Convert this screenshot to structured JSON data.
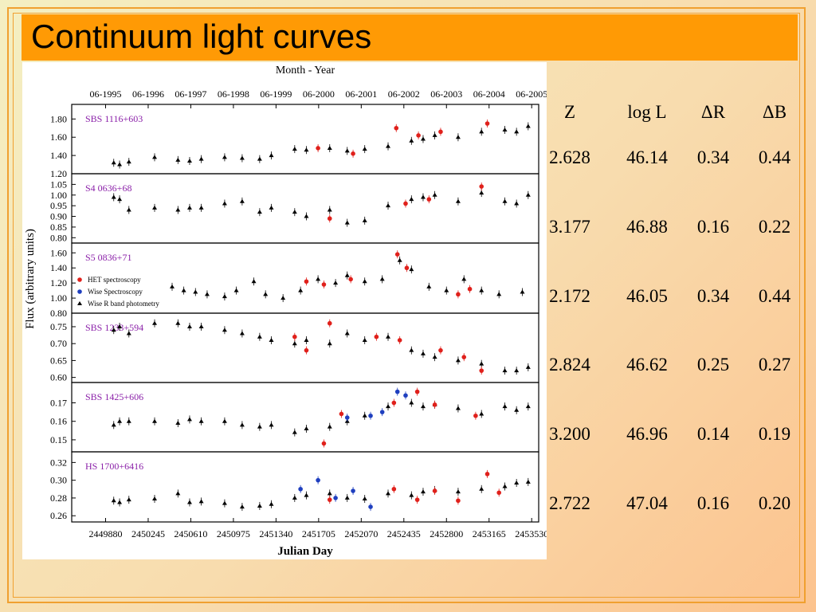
{
  "title": "Continuum light curves",
  "chart_data": {
    "type": "scatter",
    "top_label": "Month - Year",
    "x_label": "Julian Day",
    "y_label": "Flux (arbitrary units)",
    "xlim": [
      2449590,
      2453590
    ],
    "xticks": [
      2449880,
      2450245,
      2450610,
      2450975,
      2451340,
      2451705,
      2452070,
      2452435,
      2452800,
      2453165,
      2453530
    ],
    "top_ticks": [
      {
        "value": 2449880,
        "label": "06-1995"
      },
      {
        "value": 2450245,
        "label": "06-1996"
      },
      {
        "value": 2450610,
        "label": "06-1997"
      },
      {
        "value": 2450975,
        "label": "06-1998"
      },
      {
        "value": 2451340,
        "label": "06-1999"
      },
      {
        "value": 2451705,
        "label": "06-2000"
      },
      {
        "value": 2452070,
        "label": "06-2001"
      },
      {
        "value": 2452435,
        "label": "06-2002"
      },
      {
        "value": 2452800,
        "label": "06-2003"
      },
      {
        "value": 2453165,
        "label": "06-2004"
      },
      {
        "value": 2453530,
        "label": "06-2005"
      }
    ],
    "panels": [
      {
        "name": "SBS 1116+603",
        "ylim": [
          1.2,
          1.96
        ],
        "yticks": [
          {
            "value": 1.2,
            "label": "1.20"
          },
          {
            "value": 1.4,
            "label": "1.40"
          },
          {
            "value": 1.6,
            "label": "1.60"
          },
          {
            "value": 1.8,
            "label": "1.80"
          }
        ],
        "series": [
          {
            "name": "Wise R band photometry",
            "color": "#000000",
            "marker": "triangle",
            "x": [
              2449950,
              2450000,
              2450080,
              2450300,
              2450500,
              2450600,
              2450700,
              2450900,
              2451050,
              2451200,
              2451300,
              2451500,
              2451600,
              2451800,
              2451950,
              2452100,
              2452300,
              2452500,
              2452600,
              2452700,
              2452900,
              2453100,
              2453300,
              2453400,
              2453500
            ],
            "values": [
              1.32,
              1.3,
              1.33,
              1.38,
              1.35,
              1.34,
              1.36,
              1.38,
              1.37,
              1.36,
              1.4,
              1.47,
              1.46,
              1.48,
              1.45,
              1.47,
              1.5,
              1.56,
              1.58,
              1.62,
              1.6,
              1.66,
              1.68,
              1.66,
              1.72
            ]
          },
          {
            "name": "HET spectroscopy",
            "color": "#e0201b",
            "marker": "circle",
            "x": [
              2451700,
              2452000,
              2452370,
              2452560,
              2452750,
              2453150
            ],
            "values": [
              1.48,
              1.42,
              1.7,
              1.62,
              1.66,
              1.75
            ]
          }
        ]
      },
      {
        "name": "S4 0636+68",
        "ylim": [
          0.775,
          1.1
        ],
        "yticks": [
          {
            "value": 0.8,
            "label": "0.80"
          },
          {
            "value": 0.85,
            "label": "0.85"
          },
          {
            "value": 0.9,
            "label": "0.90"
          },
          {
            "value": 0.95,
            "label": "0.95"
          },
          {
            "value": 1.0,
            "label": "1.00"
          },
          {
            "value": 1.05,
            "label": "1.05"
          }
        ],
        "series": [
          {
            "name": "Wise R band photometry",
            "color": "#000000",
            "marker": "triangle",
            "x": [
              2449950,
              2450000,
              2450080,
              2450300,
              2450500,
              2450600,
              2450700,
              2450900,
              2451050,
              2451200,
              2451300,
              2451500,
              2451600,
              2451800,
              2451950,
              2452100,
              2452300,
              2452500,
              2452600,
              2452700,
              2452900,
              2453100,
              2453300,
              2453400,
              2453500
            ],
            "values": [
              0.99,
              0.98,
              0.93,
              0.94,
              0.93,
              0.94,
              0.94,
              0.96,
              0.97,
              0.92,
              0.94,
              0.92,
              0.9,
              0.93,
              0.87,
              0.88,
              0.95,
              0.98,
              0.99,
              1.0,
              0.97,
              1.01,
              0.97,
              0.96,
              1.0
            ]
          },
          {
            "name": "HET spectroscopy",
            "color": "#e0201b",
            "marker": "circle",
            "x": [
              2451800,
              2452450,
              2452650,
              2453100
            ],
            "values": [
              0.89,
              0.96,
              0.98,
              1.04
            ]
          }
        ]
      },
      {
        "name": "S5 0836+71",
        "ylim": [
          0.8,
          1.73
        ],
        "legend": true,
        "yticks": [
          {
            "value": 0.8,
            "label": "0.80"
          },
          {
            "value": 1.0,
            "label": "1.00"
          },
          {
            "value": 1.2,
            "label": "1.20"
          },
          {
            "value": 1.4,
            "label": "1.40"
          },
          {
            "value": 1.6,
            "label": "1.60"
          }
        ],
        "series": [
          {
            "name": "HET spectroscopy",
            "color": "#e0201b",
            "marker": "circle",
            "x": [
              2451600,
              2451750,
              2451980,
              2452380,
              2452460,
              2452900,
              2453000
            ],
            "values": [
              1.22,
              1.18,
              1.25,
              1.58,
              1.4,
              1.05,
              1.12
            ]
          },
          {
            "name": "Wise Spectroscopy",
            "color": "#1f3fbf",
            "marker": "circle",
            "x": [],
            "values": []
          },
          {
            "name": "Wise R band photometry",
            "color": "#000000",
            "marker": "triangle",
            "x": [
              2450450,
              2450550,
              2450650,
              2450750,
              2450900,
              2451000,
              2451150,
              2451250,
              2451400,
              2451550,
              2451700,
              2451850,
              2451950,
              2452100,
              2452250,
              2452400,
              2452500,
              2452650,
              2452800,
              2452950,
              2453100,
              2453250,
              2453450
            ],
            "values": [
              1.15,
              1.1,
              1.08,
              1.05,
              1.02,
              1.1,
              1.22,
              1.05,
              1.0,
              1.1,
              1.25,
              1.2,
              1.3,
              1.22,
              1.25,
              1.5,
              1.38,
              1.15,
              1.1,
              1.25,
              1.1,
              1.05,
              1.08
            ]
          }
        ]
      },
      {
        "name": "SBS 1233+594",
        "ylim": [
          0.585,
          0.79
        ],
        "yticks": [
          {
            "value": 0.6,
            "label": "0.60"
          },
          0.65,
          {
            "value": 0.7,
            "label": "0.70"
          },
          0.75
        ],
        "series": [
          {
            "name": "Wise R band photometry",
            "color": "#000000",
            "marker": "triangle",
            "x": [
              2449950,
              2450000,
              2450080,
              2450300,
              2450500,
              2450600,
              2450700,
              2450900,
              2451050,
              2451200,
              2451300,
              2451500,
              2451600,
              2451800,
              2451950,
              2452100,
              2452300,
              2452500,
              2452600,
              2452700,
              2452900,
              2453100,
              2453300,
              2453400,
              2453500
            ],
            "values": [
              0.74,
              0.75,
              0.73,
              0.76,
              0.76,
              0.75,
              0.75,
              0.74,
              0.73,
              0.72,
              0.71,
              0.7,
              0.71,
              0.7,
              0.73,
              0.71,
              0.72,
              0.68,
              0.67,
              0.66,
              0.65,
              0.64,
              0.62,
              0.62,
              0.63
            ]
          },
          {
            "name": "HET spectroscopy",
            "color": "#e0201b",
            "marker": "circle",
            "x": [
              2451500,
              2451600,
              2451800,
              2452200,
              2452400,
              2452750,
              2452950,
              2453100
            ],
            "values": [
              0.72,
              0.68,
              0.76,
              0.72,
              0.71,
              0.68,
              0.66,
              0.62
            ]
          }
        ]
      },
      {
        "name": "SBS 1425+606",
        "ylim": [
          0.1435,
          0.181
        ],
        "yticks": [
          0.15,
          0.16,
          0.17
        ],
        "series": [
          {
            "name": "Wise R band photometry",
            "color": "#000000",
            "marker": "triangle",
            "x": [
              2449950,
              2450000,
              2450080,
              2450300,
              2450500,
              2450600,
              2450700,
              2450900,
              2451050,
              2451200,
              2451300,
              2451500,
              2451600,
              2451800,
              2451950,
              2452100,
              2452300,
              2452500,
              2452600,
              2452700,
              2452900,
              2453100,
              2453300,
              2453400,
              2453500
            ],
            "values": [
              0.158,
              0.16,
              0.16,
              0.16,
              0.159,
              0.161,
              0.16,
              0.16,
              0.158,
              0.157,
              0.158,
              0.154,
              0.156,
              0.157,
              0.16,
              0.163,
              0.168,
              0.17,
              0.168,
              0.169,
              0.167,
              0.164,
              0.168,
              0.166,
              0.168
            ]
          },
          {
            "name": "HET spectroscopy",
            "color": "#e0201b",
            "marker": "circle",
            "x": [
              2451750,
              2451900,
              2452350,
              2452550,
              2452700,
              2453050
            ],
            "values": [
              0.148,
              0.164,
              0.17,
              0.176,
              0.169,
              0.163
            ]
          },
          {
            "name": "Wise Spectroscopy",
            "color": "#1f3fbf",
            "marker": "circle",
            "x": [
              2451950,
              2452150,
              2452250,
              2452380,
              2452450
            ],
            "values": [
              0.162,
              0.163,
              0.165,
              0.176,
              0.174
            ]
          }
        ]
      },
      {
        "name": "HS 1700+6416",
        "ylim": [
          0.253,
          0.332
        ],
        "yticks": [
          0.26,
          0.28,
          {
            "value": 0.3,
            "label": "0.30"
          },
          0.32
        ],
        "series": [
          {
            "name": "Wise R band photometry",
            "color": "#000000",
            "marker": "triangle",
            "x": [
              2449950,
              2450000,
              2450080,
              2450300,
              2450500,
              2450600,
              2450700,
              2450900,
              2451050,
              2451200,
              2451300,
              2451500,
              2451600,
              2451800,
              2451950,
              2452100,
              2452300,
              2452500,
              2452600,
              2452700,
              2452900,
              2453100,
              2453300,
              2453400,
              2453500
            ],
            "values": [
              0.277,
              0.275,
              0.278,
              0.279,
              0.285,
              0.275,
              0.276,
              0.274,
              0.27,
              0.271,
              0.273,
              0.28,
              0.283,
              0.285,
              0.28,
              0.279,
              0.285,
              0.283,
              0.287,
              0.289,
              0.287,
              0.29,
              0.293,
              0.297,
              0.298
            ]
          },
          {
            "name": "HET spectroscopy",
            "color": "#e0201b",
            "marker": "circle",
            "x": [
              2451800,
              2452350,
              2452550,
              2452700,
              2452900,
              2453150,
              2453250
            ],
            "values": [
              0.278,
              0.29,
              0.278,
              0.288,
              0.277,
              0.307,
              0.286
            ]
          },
          {
            "name": "Wise Spectroscopy",
            "color": "#1f3fbf",
            "marker": "circle",
            "x": [
              2451550,
              2451700,
              2451850,
              2452000,
              2452150
            ],
            "values": [
              0.29,
              0.3,
              0.28,
              0.288,
              0.27
            ]
          }
        ]
      }
    ]
  },
  "table": {
    "header": [
      "Z",
      "log L",
      "ΔR",
      "ΔB"
    ],
    "rows": [
      [
        "2.628",
        "46.14",
        "0.34",
        "0.44"
      ],
      [
        "3.177",
        "46.88",
        "0.16",
        "0.22"
      ],
      [
        "2.172",
        "46.05",
        "0.34",
        "0.44"
      ],
      [
        "2.824",
        "46.62",
        "0.25",
        "0.27"
      ],
      [
        "3.200",
        "46.96",
        "0.14",
        "0.19"
      ],
      [
        "2.722",
        "47.04",
        "0.16",
        "0.20"
      ]
    ]
  }
}
